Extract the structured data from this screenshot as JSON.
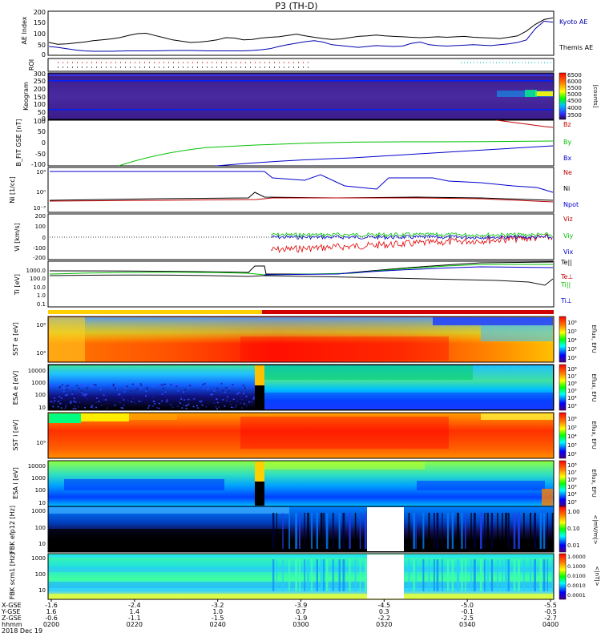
{
  "title": "P3 (TH-D)",
  "colors": {
    "black": "#000000",
    "red": "#e00000",
    "green": "#00c000",
    "blue": "#0000cc",
    "navy": "#0000aa",
    "dark_red": "#c00000",
    "cyan": "#00cccc"
  },
  "chart_data": [
    {
      "type": "line",
      "panel": "ae",
      "ylabel": "AE Index",
      "ylim": [
        0,
        200
      ],
      "yticks": [
        "200",
        "150",
        "100",
        "50",
        "0"
      ],
      "series": [
        {
          "name": "Kyoto AE",
          "color": "#0000aa",
          "values": [
            40,
            36,
            30,
            24,
            20,
            18,
            18,
            18,
            19,
            20,
            20,
            20,
            20,
            21,
            22,
            22,
            22,
            21,
            20,
            20,
            20,
            20,
            20,
            22,
            25,
            30,
            40,
            48,
            55,
            62,
            66,
            60,
            48,
            44,
            40,
            36,
            40,
            44,
            42,
            40,
            42,
            54,
            60,
            48,
            44,
            42,
            44,
            46,
            48,
            46,
            44,
            48,
            52,
            58,
            70,
            120,
            155,
            150
          ]
        },
        {
          "name": "Themis AE",
          "color": "#000000",
          "values": [
            58,
            50,
            52,
            56,
            60,
            66,
            70,
            74,
            80,
            90,
            98,
            100,
            90,
            80,
            70,
            64,
            58,
            60,
            64,
            70,
            80,
            78,
            70,
            72,
            78,
            82,
            84,
            90,
            96,
            88,
            82,
            76,
            72,
            74,
            80,
            86,
            88,
            92,
            88,
            86,
            84,
            82,
            80,
            82,
            84,
            82,
            84,
            86,
            82,
            80,
            78,
            76,
            82,
            88,
            110,
            140,
            162,
            170
          ]
        }
      ]
    },
    {
      "type": "line",
      "panel": "bfit",
      "ylabel": "B_FIT GSE [nT]",
      "ylim": [
        -100,
        100
      ],
      "yticks": [
        "100",
        "50",
        "0",
        "-50",
        "-100"
      ],
      "series": [
        {
          "name": "Bz",
          "color": "#c00000"
        },
        {
          "name": "By",
          "color": "#00c000"
        },
        {
          "name": "Bx",
          "color": "#0000cc"
        }
      ]
    },
    {
      "type": "line",
      "panel": "density",
      "ylabel": "Ni [1/cc]",
      "yticks": [
        "10⁴",
        "10⁰",
        "10⁻³"
      ],
      "series": [
        {
          "name": "Ne",
          "color": "#c00000"
        },
        {
          "name": "Ni",
          "color": "#000000"
        },
        {
          "name": "Npot",
          "color": "#0000cc"
        }
      ]
    },
    {
      "type": "line",
      "panel": "velocity",
      "ylabel": "Vi [km/s]",
      "yticks": [
        "200",
        "100",
        "0",
        "-100",
        "-200"
      ],
      "series": [
        {
          "name": "Viz",
          "color": "#c00000"
        },
        {
          "name": "Viy",
          "color": "#00c000"
        },
        {
          "name": "Vix",
          "color": "#0000cc"
        }
      ]
    },
    {
      "type": "line",
      "panel": "temperature",
      "ylabel": "Ti [eV]",
      "yticks": [
        "1000.0",
        "100.0",
        "10.0",
        "1.0",
        "0.1"
      ],
      "series": [
        {
          "name": "Te||",
          "color": "#000000"
        },
        {
          "name": "Te⊥",
          "color": "#c00000"
        },
        {
          "name": "Ti||",
          "color": "#00c000"
        },
        {
          "name": "Ti⊥",
          "color": "#0000cc"
        }
      ]
    },
    {
      "type": "heatmap",
      "panel": "keogram",
      "ylabel": "Keogram",
      "yticks": [
        "300",
        "250",
        "200",
        "150",
        "100",
        "50",
        "0"
      ],
      "colorbar_label": "[counts]",
      "colorbar_ticks": [
        "6500",
        "6000",
        "5500",
        "5000",
        "4500",
        "4000",
        "3500"
      ]
    },
    {
      "type": "heatmap",
      "panel": "sst_e",
      "ylabel": "SST e [eV]",
      "colorbar_label": "Eflux, EFU"
    },
    {
      "type": "heatmap",
      "panel": "esa_e",
      "ylabel": "ESA e [eV]",
      "yticks": [
        "10000",
        "1000",
        "100",
        "10"
      ],
      "colorbar_label": "Eflux, EFU"
    },
    {
      "type": "heatmap",
      "panel": "sst_i",
      "ylabel": "SST i [eV]",
      "colorbar_label": "Eflux, EFU"
    },
    {
      "type": "heatmap",
      "panel": "esa_i",
      "ylabel": "ESA i [eV]",
      "yticks": [
        "10000",
        "1000",
        "100",
        "10"
      ],
      "colorbar_label": "Eflux, EFU"
    },
    {
      "type": "heatmap",
      "panel": "fbk_e",
      "ylabel": "FBK efp12 [Hz]",
      "yticks": [
        "1000",
        "100",
        "10"
      ],
      "colorbar_label": "<|mV/m|>",
      "colorbar_ticks": [
        "1.00",
        "0.10",
        "0.01"
      ]
    },
    {
      "type": "heatmap",
      "panel": "fbk_b",
      "ylabel": "FBK scm1 [Hz]",
      "yticks": [
        "1000",
        "100",
        "10"
      ],
      "colorbar_label": "<|nT|>",
      "colorbar_ticks": [
        "1.0000",
        "0.1000",
        "0.0100",
        "0.0010",
        "0.0001"
      ]
    }
  ],
  "panel_labels": {
    "ae": "AE Index",
    "roi": "ROI",
    "keogram": "Keogram",
    "bfit": "B_FIT GSE [nT]",
    "density": "Ni [1/cc]",
    "velocity": "Vi [km/s]",
    "temperature": "Ti [eV]",
    "sst_e": "SST e [eV]",
    "esa_e": "ESA e [eV]",
    "sst_i": "SST i [eV]",
    "esa_i": "ESA i [eV]",
    "fbk_e": "FBK efp12 [Hz]",
    "fbk_b": "FBK scm1 [Hz]"
  },
  "colorbar_texts": {
    "eflux": "Eflux, EFU",
    "sst_e_ticks": [
      "10⁶",
      "10⁵",
      "10⁴",
      "10³",
      "10²"
    ],
    "esa_e_ticks": [
      "10⁸",
      "10⁷",
      "10⁶",
      "10⁵",
      "10⁴",
      "10³"
    ],
    "sst_i_ticks": [
      "10⁶",
      "10⁵",
      "10⁴",
      "10³",
      "10²"
    ],
    "esa_i_ticks": [
      "10⁸",
      "10⁷",
      "10⁶",
      "10⁵",
      "10⁴",
      "10³"
    ],
    "keogram_ticks": [
      "6500",
      "6000",
      "5500",
      "5000",
      "4500",
      "4000",
      "3500"
    ],
    "keogram_label": "[counts]",
    "fbk_e_ticks": [
      "1.00",
      "0.10",
      "0.01"
    ],
    "fbk_e_label": "<|mV/m|>",
    "fbk_b_ticks": [
      "1.0000",
      "0.1000",
      "0.0100",
      "0.0010",
      "0.0001"
    ],
    "fbk_b_label": "<|nT|>"
  },
  "sst_ticks": {
    "upper": "10⁶",
    "lower": "10⁴"
  },
  "sst_i_tick": "10⁵",
  "x_axis": {
    "row_labels": [
      "X-GSE",
      "Y-GSE",
      "Z-GSE",
      "hhmm",
      "2018 Dec 19"
    ],
    "columns": [
      {
        "x_gse": "-1.6",
        "y_gse": "1.6",
        "z_gse": "-0.6",
        "hhmm": "0200"
      },
      {
        "x_gse": "-2.4",
        "y_gse": "1.4",
        "z_gse": "-1.1",
        "hhmm": "0220"
      },
      {
        "x_gse": "-3.2",
        "y_gse": "1.0",
        "z_gse": "-1.5",
        "hhmm": "0240"
      },
      {
        "x_gse": "-3.9",
        "y_gse": "0.7",
        "z_gse": "-1.9",
        "hhmm": "0300"
      },
      {
        "x_gse": "-4.5",
        "y_gse": "0.3",
        "z_gse": "-2.2",
        "hhmm": "0320"
      },
      {
        "x_gse": "-5.0",
        "y_gse": "-0.1",
        "z_gse": "-2.5",
        "hhmm": "0340"
      },
      {
        "x_gse": "-5.5",
        "y_gse": "-0.5",
        "z_gse": "-2.7",
        "hhmm": "0400"
      }
    ]
  }
}
